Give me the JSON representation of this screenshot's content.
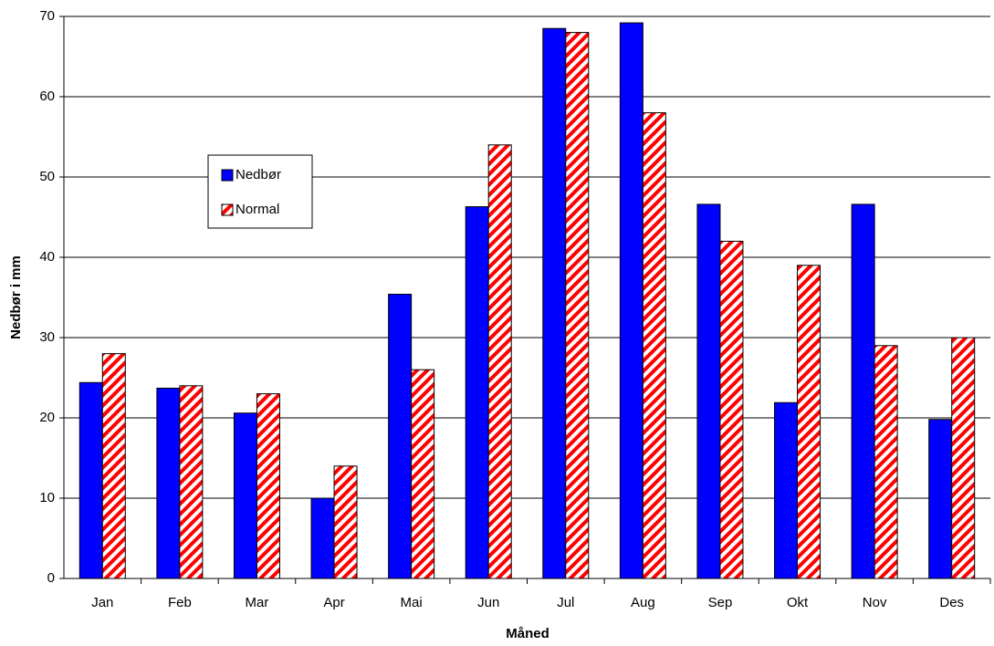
{
  "chart_data": {
    "type": "bar",
    "x_label": "Måned",
    "y_label": "Nedbør i mm",
    "categories": [
      "Jan",
      "Feb",
      "Mar",
      "Apr",
      "Mai",
      "Jun",
      "Jul",
      "Aug",
      "Sep",
      "Okt",
      "Nov",
      "Des"
    ],
    "series": [
      {
        "name": "Nedbør",
        "color": "#0000ff",
        "values": [
          24.4,
          23.7,
          20.6,
          10.0,
          35.4,
          46.3,
          68.5,
          69.2,
          46.6,
          21.9,
          46.6,
          19.8
        ]
      },
      {
        "name": "Normal",
        "color": "#ff0000",
        "pattern": "diagonal-stripes",
        "values": [
          28,
          24,
          23,
          14,
          26,
          54,
          68,
          58,
          42,
          39,
          29,
          30
        ]
      }
    ],
    "ylim": [
      0,
      70
    ],
    "yticks": [
      0,
      10,
      20,
      30,
      40,
      50,
      60,
      70
    ],
    "grid": true
  }
}
